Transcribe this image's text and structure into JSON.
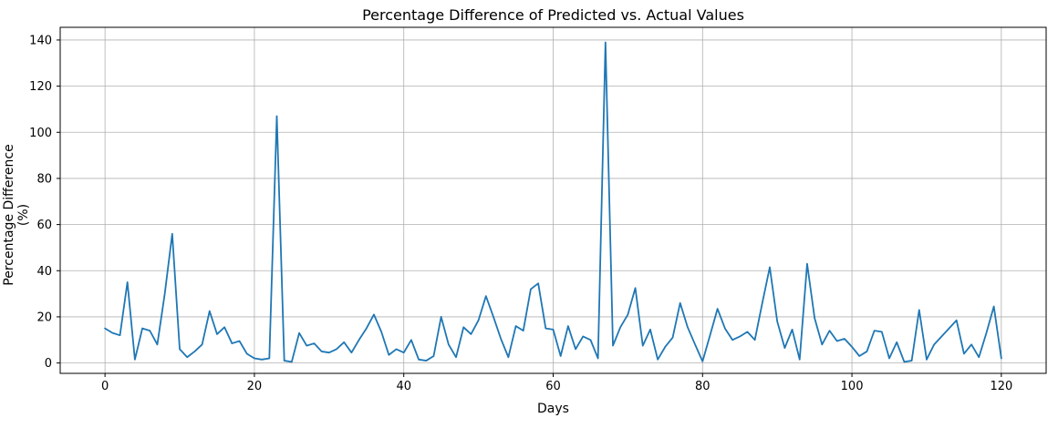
{
  "chart_data": {
    "type": "line",
    "title": "Percentage Difference of Predicted vs. Actual Values",
    "xlabel": "Days",
    "ylabel": "Percentage Difference (%)",
    "x_ticks": [
      0,
      20,
      40,
      60,
      80,
      100,
      120
    ],
    "y_ticks": [
      0,
      20,
      40,
      60,
      80,
      100,
      120,
      140
    ],
    "xlim": [
      -6,
      126
    ],
    "ylim": [
      -4.5,
      145.5
    ],
    "grid": true,
    "legend_position": "none",
    "line_color": "#1f77b4",
    "grid_color": "#b0b0b0",
    "spine_color": "#000000",
    "x_start": 0,
    "x_step": 1,
    "values": [
      15,
      13,
      12,
      35,
      1.5,
      15,
      14,
      8,
      30,
      56,
      6,
      2.5,
      5,
      8,
      22.5,
      12.5,
      15.5,
      8.5,
      9.5,
      4,
      2,
      1.5,
      2,
      107,
      1,
      0.5,
      13,
      7.5,
      8.5,
      5,
      4.5,
      6,
      9,
      4.5,
      10,
      15,
      21,
      13.5,
      3.5,
      6,
      4.5,
      10,
      1.5,
      1,
      3,
      20,
      8,
      2.5,
      15.5,
      12.5,
      18.5,
      29,
      20,
      10.5,
      2.5,
      16,
      14,
      32,
      34.5,
      15,
      14.5,
      3,
      16,
      6,
      11.5,
      10,
      2,
      139,
      7.5,
      15.5,
      21,
      32.5,
      7.5,
      14.5,
      1.5,
      7,
      11,
      26,
      15.5,
      8,
      0.7,
      12,
      23.5,
      15,
      10,
      11.5,
      13.5,
      10,
      26,
      41.5,
      18,
      6.5,
      14.5,
      1.5,
      43,
      19.5,
      8,
      14,
      9.5,
      10.5,
      7,
      3,
      5,
      14,
      13.5,
      2,
      9,
      0.5,
      1,
      23,
      1.5,
      8,
      11.5,
      15,
      18.5,
      4,
      8,
      2.5,
      13,
      24.5,
      2
    ]
  }
}
